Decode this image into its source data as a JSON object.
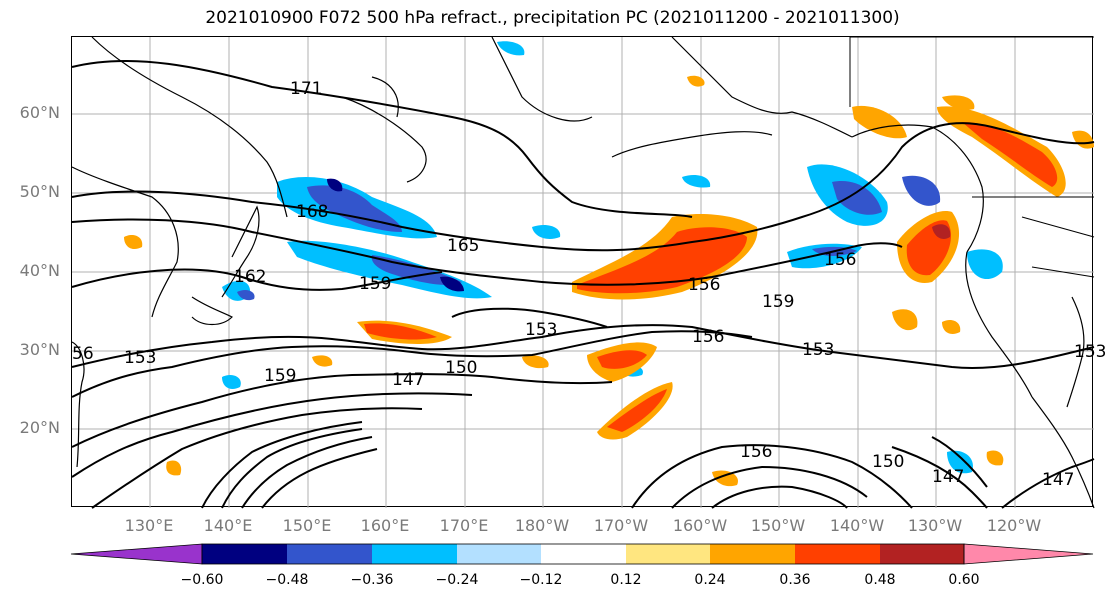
{
  "title": "2021010900 F072 500 hPa refract., precipitation PC (2021011200 - 2021011300)",
  "lat_labels": [
    "60°N",
    "50°N",
    "40°N",
    "30°N",
    "20°N"
  ],
  "lon_labels": [
    "130°E",
    "140°E",
    "150°E",
    "160°E",
    "170°E",
    "180°W",
    "170°W",
    "160°W",
    "150°W",
    "140°W",
    "130°W",
    "120°W"
  ],
  "contour_labels": [
    "171",
    "168",
    "165",
    "162",
    "159",
    "156",
    "153",
    "150",
    "147",
    "156",
    "159",
    "153",
    "153",
    "156",
    "159",
    "156",
    "150",
    "147",
    "147",
    "56",
    "153"
  ],
  "colorbar": {
    "colors": [
      "#9933cc",
      "#000080",
      "#3355cc",
      "#00bfff",
      "#b3e0ff",
      "#ffffff",
      "#ffe680",
      "#ffa500",
      "#ff4000",
      "#b22222",
      "#ff88aa"
    ],
    "tick_labels": [
      "−0.60",
      "−0.48",
      "−0.36",
      "−0.24",
      "−0.12",
      "0.12",
      "0.24",
      "0.36",
      "0.48",
      "0.60"
    ]
  }
}
